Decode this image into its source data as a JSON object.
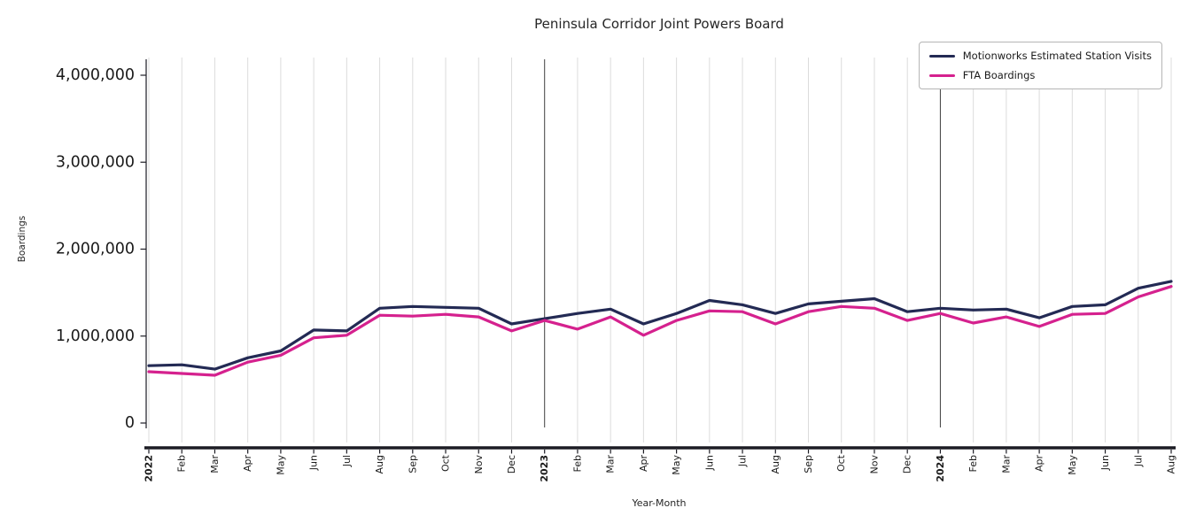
{
  "chart_data": {
    "type": "line",
    "title": "Peninsula Corridor Joint Powers Board",
    "xlabel": "Year-Month",
    "ylabel": "Boardings",
    "ylim": [
      0,
      4000000
    ],
    "yticks": [
      0,
      1000000,
      2000000,
      3000000,
      4000000
    ],
    "ytick_labels": [
      "0",
      "1,000,000",
      "2,000,000",
      "3,000,000",
      "4,000,000"
    ],
    "grid": "vertical",
    "legend_position": "upper right",
    "xtick_rotation": 90,
    "x": [
      "2022",
      "Feb",
      "Mar",
      "Apr",
      "May",
      "Jun",
      "Jul",
      "Aug",
      "Sep",
      "Oct",
      "Nov",
      "Dec",
      "2023",
      "Feb",
      "Mar",
      "Apr",
      "May",
      "Jun",
      "Jul",
      "Aug",
      "Sep",
      "Oct",
      "Nov",
      "Dec",
      "2024",
      "Feb",
      "Mar",
      "Apr",
      "May",
      "Jun",
      "Jul",
      "Aug"
    ],
    "year_tick_indices": [
      0,
      12,
      24
    ],
    "year_line_indices": [
      12,
      24
    ],
    "colors": {
      "grid": "#dcdcdc",
      "year_line": "#3f3f3f",
      "axis": "#1c1c24",
      "text": "#1a1a1a"
    },
    "series": [
      {
        "id": "motionworks",
        "name": "Motionworks Estimated Station Visits",
        "color": "#232a54",
        "values": [
          660000,
          670000,
          620000,
          750000,
          830000,
          1070000,
          1060000,
          1320000,
          1340000,
          1330000,
          1320000,
          1140000,
          1200000,
          1260000,
          1310000,
          1140000,
          1260000,
          1410000,
          1360000,
          1260000,
          1370000,
          1400000,
          1430000,
          1280000,
          1320000,
          1300000,
          1310000,
          1210000,
          1340000,
          1360000,
          1550000,
          1630000
        ]
      },
      {
        "id": "fta",
        "name": "FTA Boardings",
        "color": "#d5218e",
        "values": [
          590000,
          570000,
          550000,
          700000,
          780000,
          980000,
          1010000,
          1240000,
          1230000,
          1250000,
          1220000,
          1060000,
          1180000,
          1080000,
          1220000,
          1010000,
          1180000,
          1290000,
          1280000,
          1140000,
          1280000,
          1340000,
          1320000,
          1180000,
          1260000,
          1150000,
          1220000,
          1110000,
          1250000,
          1260000,
          1450000,
          1570000
        ]
      }
    ]
  }
}
